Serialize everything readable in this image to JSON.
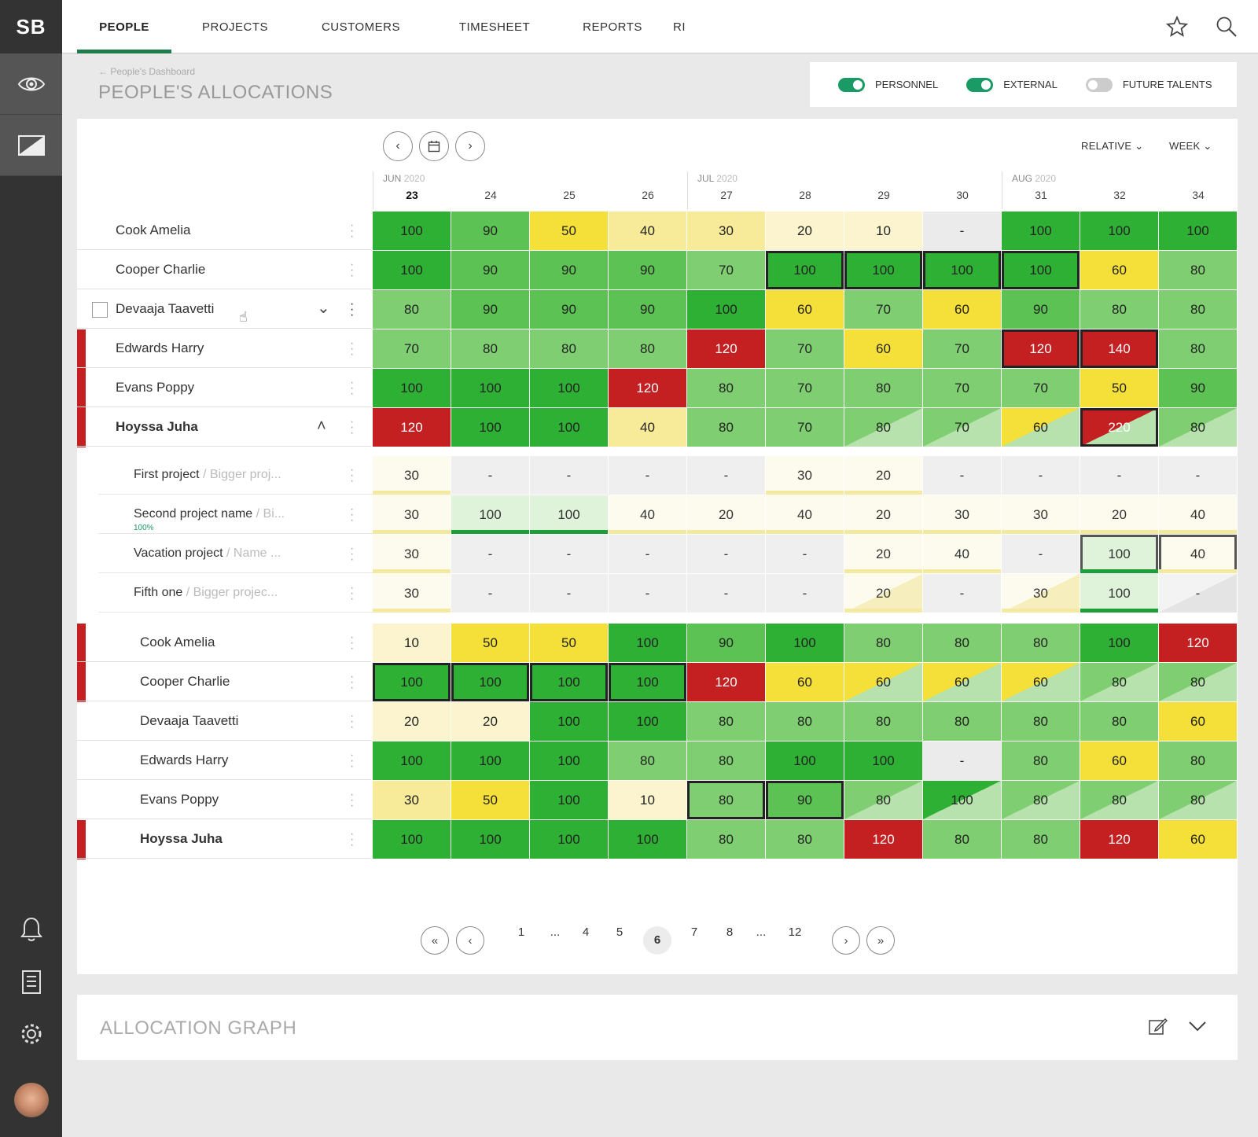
{
  "app": {
    "logo": "SB"
  },
  "tabs": [
    {
      "label": "PEOPLE",
      "active": true
    },
    {
      "label": "PROJECTS"
    },
    {
      "label": "CUSTOMERS"
    },
    {
      "label": "TIMESHEET"
    },
    {
      "label": "REPORTS"
    },
    {
      "label": "RI"
    }
  ],
  "breadcrumb": "← People's Dashboard",
  "page_title": "PEOPLE'S ALLOCATIONS",
  "toggles": [
    {
      "label": "PERSONNEL",
      "on": true
    },
    {
      "label": "EXTERNAL",
      "on": true
    },
    {
      "label": "FUTURE TALENTS",
      "on": false
    }
  ],
  "view_controls": {
    "mode": "RELATIVE",
    "period": "WEEK"
  },
  "months": [
    {
      "label": "JUN",
      "year": "2020"
    },
    {
      "label": "JUL",
      "year": "2020"
    },
    {
      "label": "AUG",
      "year": "2020"
    }
  ],
  "weeks": [
    "23",
    "24",
    "25",
    "26",
    "27",
    "28",
    "29",
    "30",
    "31",
    "32",
    "34"
  ],
  "current_week": "23",
  "people_group1": [
    {
      "name": "Cook Amelia",
      "flag": false,
      "values": [
        "100",
        "90",
        "50",
        "40",
        "30",
        "20",
        "10",
        "-",
        "100",
        "100",
        "100"
      ]
    },
    {
      "name": "Cooper Charlie",
      "flag": false,
      "values": [
        "100",
        "90",
        "90",
        "90",
        "70",
        "100",
        "100",
        "100",
        "100",
        "60",
        "80"
      ]
    },
    {
      "name": "Devaaja Taavetti",
      "flag": false,
      "values": [
        "80",
        "90",
        "90",
        "90",
        "100",
        "60",
        "70",
        "60",
        "90",
        "80",
        "80"
      ]
    },
    {
      "name": "Edwards Harry",
      "flag": true,
      "values": [
        "70",
        "80",
        "80",
        "80",
        "120",
        "70",
        "60",
        "70",
        "120",
        "140",
        "80"
      ]
    },
    {
      "name": "Evans Poppy",
      "flag": true,
      "values": [
        "100",
        "100",
        "100",
        "120",
        "80",
        "70",
        "80",
        "70",
        "70",
        "50",
        "90"
      ]
    },
    {
      "name": "Hoyssa Juha",
      "flag": true,
      "values": [
        "120",
        "100",
        "100",
        "40",
        "80",
        "70",
        "80",
        "70",
        "60",
        "220",
        "80"
      ]
    }
  ],
  "projects": [
    {
      "name": "First project",
      "parent": "Bigger proj...",
      "percent": "",
      "values": [
        "30",
        "-",
        "-",
        "-",
        "-",
        "30",
        "20",
        "-",
        "-",
        "-",
        "-"
      ]
    },
    {
      "name": "Second project name",
      "parent": "Bi...",
      "percent": "100%",
      "values": [
        "30",
        "100",
        "100",
        "40",
        "20",
        "40",
        "20",
        "30",
        "30",
        "20",
        "40"
      ]
    },
    {
      "name": "Vacation project",
      "parent": "Name ...",
      "percent": "",
      "values": [
        "30",
        "-",
        "-",
        "-",
        "-",
        "-",
        "20",
        "40",
        "-",
        "100",
        "40"
      ]
    },
    {
      "name": "Fifth one",
      "parent": "Bigger projec...",
      "percent": "",
      "values": [
        "30",
        "-",
        "-",
        "-",
        "-",
        "-",
        "20",
        "-",
        "30",
        "100",
        "-"
      ]
    }
  ],
  "people_group2": [
    {
      "name": "Cook Amelia",
      "flag": true,
      "values": [
        "10",
        "50",
        "50",
        "100",
        "90",
        "100",
        "80",
        "80",
        "80",
        "100",
        "120"
      ]
    },
    {
      "name": "Cooper Charlie",
      "flag": true,
      "values": [
        "100",
        "100",
        "100",
        "100",
        "120",
        "60",
        "60",
        "60",
        "60",
        "80",
        "80"
      ]
    },
    {
      "name": "Devaaja Taavetti",
      "flag": false,
      "values": [
        "20",
        "20",
        "100",
        "100",
        "80",
        "80",
        "80",
        "80",
        "80",
        "80",
        "60"
      ]
    },
    {
      "name": "Edwards Harry",
      "flag": false,
      "values": [
        "100",
        "100",
        "100",
        "80",
        "80",
        "100",
        "100",
        "-",
        "80",
        "60",
        "80"
      ]
    },
    {
      "name": "Evans Poppy",
      "flag": false,
      "values": [
        "30",
        "50",
        "100",
        "10",
        "80",
        "90",
        "80",
        "100",
        "80",
        "80",
        "80"
      ]
    },
    {
      "name": "Hoyssa Juha",
      "flag": true,
      "values": [
        "100",
        "100",
        "100",
        "100",
        "80",
        "80",
        "120",
        "80",
        "80",
        "120",
        "60"
      ]
    }
  ],
  "pagination": {
    "pages": [
      "1",
      "...",
      "4",
      "5",
      "6",
      "7",
      "8",
      "...",
      "12"
    ],
    "current": "6"
  },
  "allocation_graph": {
    "title": "ALLOCATION GRAPH"
  },
  "colors": {
    "brand": "#1e7d4a",
    "green_dark": "#2db033",
    "green_mid": "#5cc253",
    "green_light": "#7fcf72",
    "yellow": "#f5e03a",
    "yellow_light": "#f7eb9a",
    "red": "#c42021",
    "empty": "#ebebeb"
  }
}
